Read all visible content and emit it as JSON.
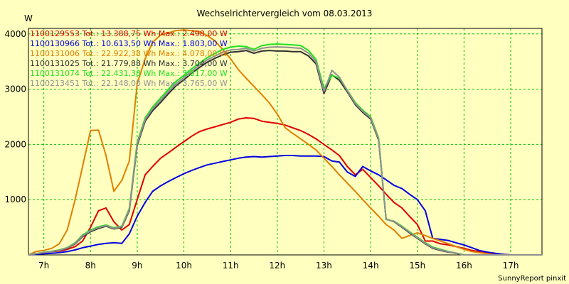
{
  "chart_data": {
    "type": "line",
    "title": "Wechselrichtervergleich vom 08.03.2013",
    "ylabel": "W",
    "credit": "SunnyReport pinxit",
    "xlim": [
      6.67,
      17.67
    ],
    "ylim": [
      0,
      4100
    ],
    "x_ticks": [
      {
        "value": 7,
        "label": "7h"
      },
      {
        "value": 8,
        "label": "8h"
      },
      {
        "value": 9,
        "label": "9h"
      },
      {
        "value": 10,
        "label": "10h"
      },
      {
        "value": 11,
        "label": "11h"
      },
      {
        "value": 12,
        "label": "12h"
      },
      {
        "value": 13,
        "label": "13h"
      },
      {
        "value": 14,
        "label": "14h"
      },
      {
        "value": 15,
        "label": "15h"
      },
      {
        "value": 16,
        "label": "16h"
      },
      {
        "value": 17,
        "label": "17h"
      }
    ],
    "y_ticks": [
      {
        "value": 1000,
        "label": "1000"
      },
      {
        "value": 2000,
        "label": "2000"
      },
      {
        "value": 3000,
        "label": "3000"
      },
      {
        "value": 4000,
        "label": "4000"
      }
    ],
    "grid": true,
    "legend_position": "top-left",
    "x": [
      6.67,
      6.83,
      7.0,
      7.17,
      7.33,
      7.5,
      7.67,
      7.83,
      8.0,
      8.17,
      8.33,
      8.5,
      8.67,
      8.83,
      9.0,
      9.17,
      9.33,
      9.5,
      9.67,
      9.83,
      10.0,
      10.17,
      10.33,
      10.5,
      10.67,
      10.83,
      11.0,
      11.17,
      11.33,
      11.5,
      11.67,
      11.83,
      12.0,
      12.17,
      12.33,
      12.5,
      12.67,
      12.83,
      13.0,
      13.17,
      13.33,
      13.5,
      13.67,
      13.83,
      14.0,
      14.17,
      14.33,
      14.5,
      14.67,
      14.83,
      15.0,
      15.17,
      15.33,
      15.5,
      15.67,
      15.83,
      16.0,
      16.17,
      16.33,
      16.5,
      16.67,
      16.83,
      17.0,
      17.17,
      17.33,
      17.5,
      17.67
    ],
    "series": [
      {
        "name": "1100129553 Tot.: 13.388,75 Wh Max.: 2.498,00 W",
        "color": "#e00000",
        "values": [
          0,
          20,
          40,
          60,
          70,
          100,
          150,
          250,
          500,
          800,
          850,
          600,
          450,
          550,
          1000,
          1450,
          1600,
          1750,
          1850,
          1950,
          2050,
          2150,
          2230,
          2280,
          2320,
          2360,
          2400,
          2460,
          2480,
          2470,
          2420,
          2400,
          2380,
          2350,
          2300,
          2250,
          2180,
          2100,
          2000,
          1900,
          1800,
          1600,
          1450,
          1550,
          1400,
          1250,
          1100,
          950,
          850,
          700,
          550,
          250,
          250,
          200,
          180,
          150,
          120,
          80,
          60,
          40,
          20,
          10,
          0,
          0,
          0,
          0,
          0
        ]
      },
      {
        "name": "1100130966 Tot.: 10.613,50 Wh Max.: 1.803,00 W",
        "color": "#0000e0",
        "values": [
          0,
          10,
          20,
          30,
          40,
          60,
          90,
          130,
          160,
          190,
          210,
          220,
          210,
          380,
          700,
          950,
          1150,
          1250,
          1330,
          1400,
          1470,
          1530,
          1580,
          1630,
          1660,
          1690,
          1720,
          1750,
          1770,
          1780,
          1770,
          1780,
          1790,
          1800,
          1800,
          1790,
          1790,
          1790,
          1780,
          1700,
          1680,
          1500,
          1420,
          1600,
          1520,
          1450,
          1360,
          1260,
          1200,
          1100,
          1000,
          800,
          300,
          280,
          260,
          220,
          180,
          130,
          80,
          50,
          30,
          10,
          0,
          0,
          0,
          0,
          0
        ]
      },
      {
        "name": "1100131006 Tot.: 22.922,38 Wh Max.: 4.078,00 W",
        "color": "#e08000",
        "values": [
          0,
          60,
          80,
          120,
          200,
          450,
          1000,
          1600,
          2250,
          2260,
          1800,
          1150,
          1350,
          1700,
          3100,
          3550,
          3850,
          3980,
          4020,
          4060,
          4070,
          4060,
          4040,
          3970,
          3870,
          3720,
          3550,
          3350,
          3200,
          3050,
          2900,
          2750,
          2550,
          2300,
          2200,
          2100,
          2000,
          1900,
          1750,
          1600,
          1450,
          1300,
          1150,
          1000,
          850,
          700,
          550,
          450,
          300,
          350,
          400,
          350,
          300,
          250,
          200,
          150,
          100,
          60,
          40,
          20,
          0,
          0,
          0,
          0,
          0,
          0,
          0
        ]
      },
      {
        "name": "1100131025 Tot.: 21.779,88 Wh Max.: 3.704,00 W",
        "color": "#303030",
        "values": [
          0,
          20,
          40,
          60,
          80,
          120,
          200,
          330,
          420,
          480,
          520,
          470,
          500,
          800,
          1980,
          2420,
          2610,
          2760,
          2920,
          3060,
          3170,
          3290,
          3390,
          3490,
          3560,
          3620,
          3670,
          3680,
          3700,
          3650,
          3690,
          3700,
          3690,
          3690,
          3680,
          3680,
          3600,
          3460,
          2920,
          3260,
          3160,
          2950,
          2720,
          2580,
          2460,
          2080,
          650,
          600,
          500,
          400,
          300,
          200,
          120,
          80,
          50,
          30,
          0,
          0,
          0,
          0,
          0,
          0,
          0,
          0,
          0,
          0,
          0
        ]
      },
      {
        "name": "1100131074 Tot.: 22.431,38 Wh Max.: 3.817,00 W",
        "color": "#20e020",
        "values": [
          0,
          25,
          45,
          65,
          90,
          130,
          220,
          360,
          450,
          510,
          540,
          490,
          520,
          840,
          2040,
          2480,
          2680,
          2840,
          3000,
          3140,
          3250,
          3370,
          3470,
          3570,
          3650,
          3720,
          3760,
          3780,
          3770,
          3720,
          3790,
          3810,
          3817,
          3810,
          3800,
          3790,
          3700,
          3540,
          3010,
          3250,
          3200,
          2980,
          2760,
          2620,
          2500,
          2120,
          640,
          610,
          520,
          420,
          320,
          220,
          140,
          100,
          60,
          35,
          0,
          0,
          0,
          0,
          0,
          0,
          0,
          0,
          0,
          0,
          0
        ]
      },
      {
        "name": "1100213451 Tot.: 22.148,00 Wh Max.: 3.765,00 W",
        "color": "#909090",
        "values": [
          0,
          22,
          42,
          62,
          85,
          125,
          210,
          345,
          435,
          495,
          530,
          480,
          510,
          820,
          2010,
          2450,
          2645,
          2800,
          2960,
          3100,
          3210,
          3330,
          3430,
          3530,
          3600,
          3670,
          3710,
          3720,
          3740,
          3690,
          3740,
          3760,
          3765,
          3760,
          3750,
          3740,
          3650,
          3500,
          2960,
          3340,
          3220,
          2970,
          2740,
          2600,
          2480,
          2100,
          645,
          605,
          510,
          410,
          310,
          210,
          130,
          90,
          55,
          32,
          0,
          0,
          0,
          0,
          0,
          0,
          0,
          0,
          0,
          0,
          0
        ]
      }
    ]
  }
}
